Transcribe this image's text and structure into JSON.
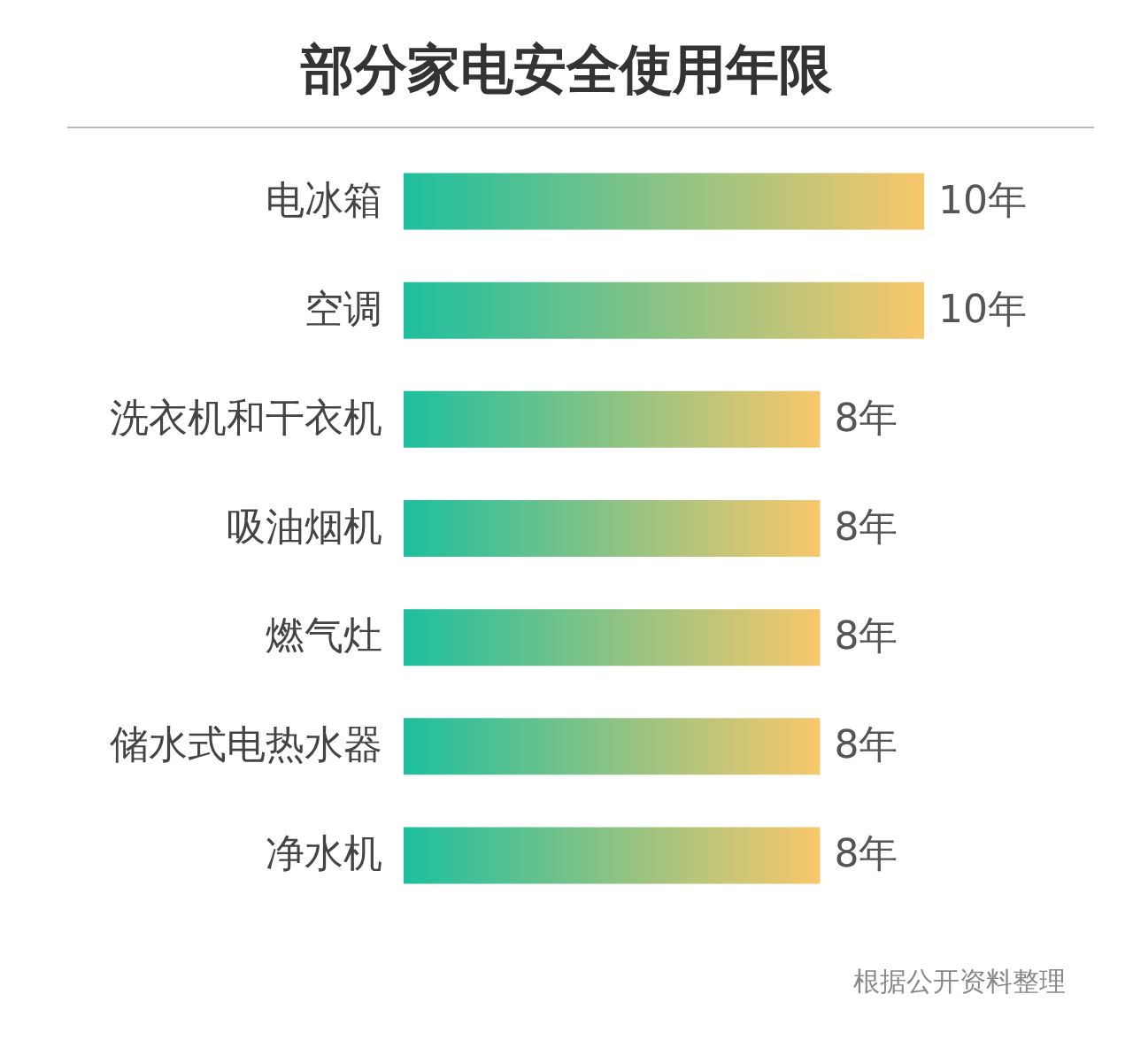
{
  "chart_data": {
    "type": "bar",
    "orientation": "horizontal",
    "title": "部分家电安全使用年限",
    "categories": [
      "电冰箱",
      "空调",
      "洗衣机和干衣机",
      "吸油烟机",
      "燃气灶",
      "储水式电热水器",
      "净水机"
    ],
    "series": [
      {
        "color": "#1dbf9e",
        "values": [
          10,
          10,
          8,
          8,
          8,
          8,
          8
        ],
        "value_labels": [
          "10年",
          "10年",
          "8年",
          "8年",
          "8年",
          "8年",
          "8年"
        ]
      }
    ],
    "annotations": [
      "根据公开资料整理"
    ]
  }
}
